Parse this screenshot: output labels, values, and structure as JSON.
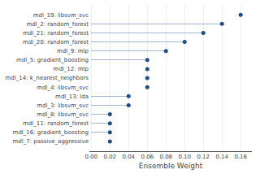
{
  "chart_data": {
    "type": "lollipop",
    "orientation": "horizontal",
    "xlabel": "Ensemble Weight",
    "categories": [
      "mdl_7: passive_aggressive",
      "mdl_16: gradient_boosting",
      "mdl_11: random_forest",
      "mdl_8: libsvm_svc",
      "mdl_3: libsvm_svc",
      "mdl_13: lda",
      "mdl_4: libsvm_svc",
      "mdl_14: k_nearest_neighbors",
      "mdl_12: mlp",
      "mdl_5: gradient_boosting",
      "mdl_9: mlp",
      "mdl_20: random_forest",
      "mdl_21: random_forest",
      "mdl_2: random_forest",
      "mdl_19: libsvm_svc"
    ],
    "values": [
      0.02,
      0.02,
      0.02,
      0.02,
      0.04,
      0.04,
      0.06,
      0.06,
      0.06,
      0.06,
      0.08,
      0.1,
      0.12,
      0.14,
      0.16
    ],
    "color": "#1b4f8a",
    "xlim": [
      -0.002,
      0.172
    ],
    "xticks": [
      {
        "value": 0,
        "label": "0.00"
      },
      0.02,
      0.04,
      0.06,
      0.08,
      {
        "value": 0.1,
        "label": "0.10"
      },
      0.12,
      0.14,
      0.16
    ],
    "grid": true
  }
}
